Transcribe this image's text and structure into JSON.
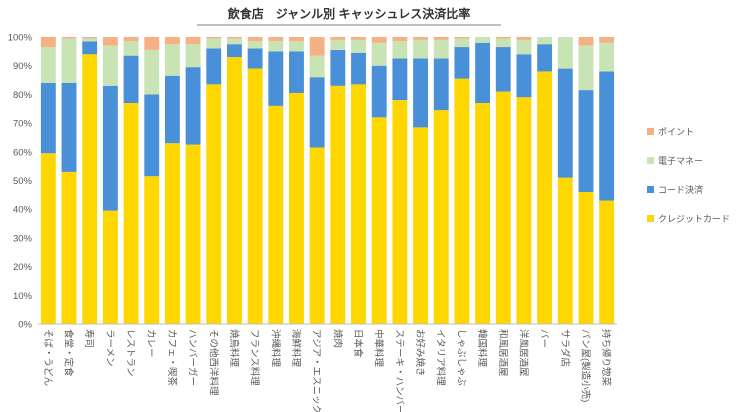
{
  "chart_data": {
    "type": "bar",
    "stacked": true,
    "title": "飲食店　ジャンル別 キャッシュレス決済比率",
    "xlabel": "",
    "ylabel": "",
    "ylim": [
      0,
      100
    ],
    "y_ticks": [
      "0%",
      "10%",
      "20%",
      "30%",
      "40%",
      "50%",
      "60%",
      "70%",
      "80%",
      "90%",
      "100%"
    ],
    "grid": false,
    "legend_position": "right",
    "categories": [
      "そば・うどん",
      "食堂・定食",
      "寿司",
      "ラーメン",
      "レストラン",
      "カレー",
      "カフェ・喫茶",
      "ハンバーガー",
      "その他西洋料理",
      "焼鳥料理",
      "フランス料理",
      "沖縄料理",
      "海鮮料理",
      "アジア・エスニック",
      "焼肉",
      "日本食",
      "中華料理",
      "ステーキ・ハンバーグ",
      "お好み焼き",
      "イタリア料理",
      "しゃぶしゃぶ",
      "韓国料理",
      "和風居酒屋",
      "洋風居酒屋",
      "バー",
      "サラダ店",
      "パン屋(製造小売)",
      "持ち帰り惣菜"
    ],
    "series": [
      {
        "name": "クレジットカード",
        "color": "#FFD700",
        "values": [
          59.5,
          53,
          94,
          39.5,
          77,
          51.5,
          63,
          62.5,
          83.5,
          93,
          89,
          76,
          80.5,
          61.5,
          83,
          83.5,
          72,
          78,
          68.5,
          74.5,
          85.5,
          77,
          81,
          79,
          88,
          51,
          46,
          43
        ]
      },
      {
        "name": "コード決済",
        "color": "#4A90D9",
        "values": [
          24.5,
          31,
          4.5,
          43.5,
          16.5,
          28.5,
          23.5,
          27,
          12.5,
          4.5,
          7,
          19,
          14.5,
          24.5,
          12.5,
          11,
          18,
          14.5,
          24,
          18,
          11,
          21,
          15.5,
          15,
          9.5,
          38,
          35.5,
          45
        ]
      },
      {
        "name": "電子マネー",
        "color": "#C9E4B4",
        "values": [
          12.5,
          15.5,
          1,
          14,
          5,
          15.5,
          11,
          8,
          3.5,
          2,
          2.5,
          3.5,
          3.5,
          7.5,
          3.5,
          4.5,
          8,
          6,
          6.5,
          6.5,
          3,
          2,
          3,
          5,
          2.5,
          11,
          15.5,
          10
        ]
      },
      {
        "name": "ポイント",
        "color": "#F4B183",
        "values": [
          3.5,
          0.5,
          0.5,
          3,
          1.5,
          4.5,
          2.5,
          2.5,
          0.5,
          0.5,
          1.5,
          1.5,
          1.5,
          6.5,
          1,
          1,
          2,
          1.5,
          1,
          1,
          0.5,
          0,
          0.5,
          1,
          0,
          0,
          3,
          2
        ]
      }
    ]
  }
}
